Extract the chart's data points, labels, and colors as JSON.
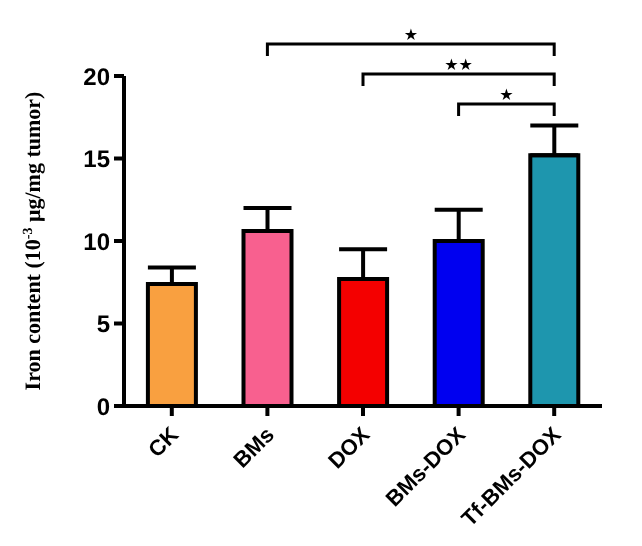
{
  "chart_data": {
    "type": "bar",
    "ylabel": "Iron content (10$^{-3}$ μg/mg tumor)",
    "categories": [
      "CK",
      "BMs",
      "DOX",
      "BMs-DOX",
      "Tf-BMs-DOX"
    ],
    "values": [
      7.4,
      10.6,
      7.7,
      10.0,
      15.2
    ],
    "colors": [
      "#f9a040",
      "#f8608f",
      "#f40000",
      "#0000f0",
      "#1e96ae"
    ],
    "errors": [
      [
        7.4,
        8.4
      ],
      [
        10.6,
        12.0
      ],
      [
        7.7,
        9.5
      ],
      [
        10.0,
        11.9
      ],
      [
        15.2,
        17.0
      ]
    ],
    "ylim": [
      0,
      20
    ],
    "yticks": [
      0,
      5,
      10,
      15,
      20
    ],
    "annotations": [
      "★",
      "★★",
      "★"
    ],
    "grid": false,
    "legend": false
  }
}
